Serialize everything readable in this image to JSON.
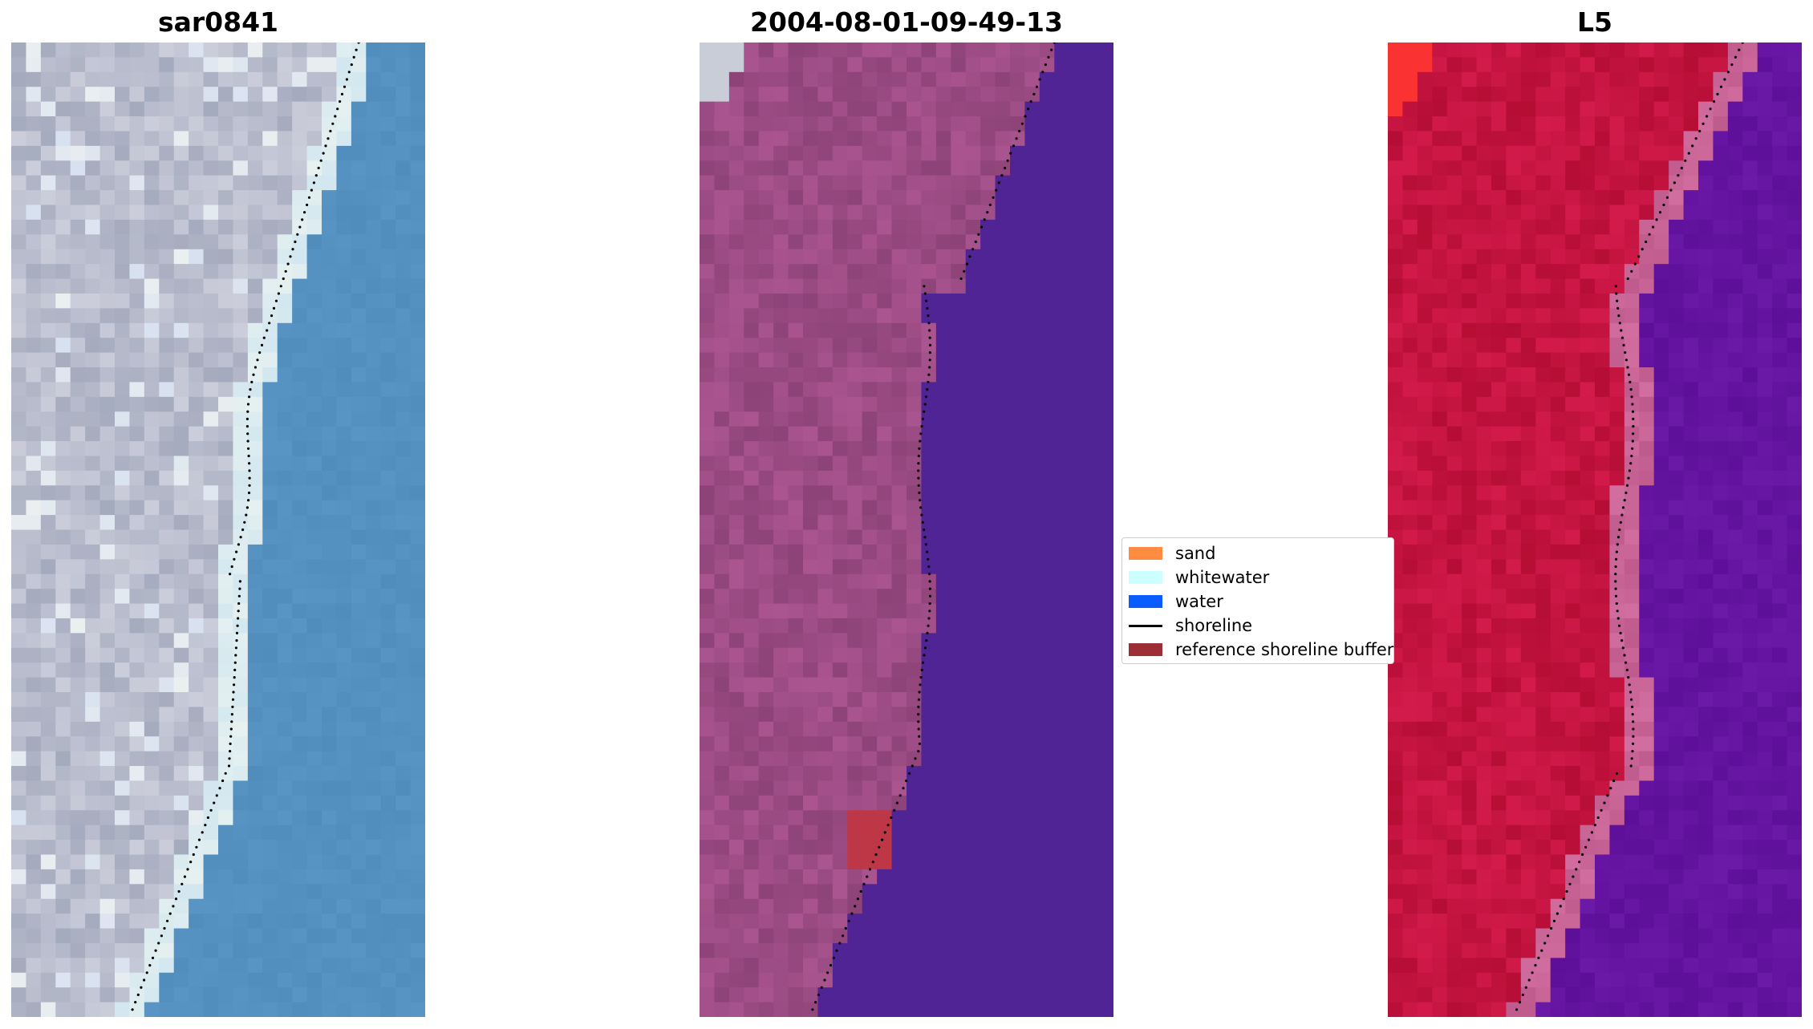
{
  "panels": [
    {
      "title": "sar0841",
      "kind": "rgb"
    },
    {
      "title": "2004-08-01-09-49-13",
      "kind": "classified"
    },
    {
      "title": "L5",
      "kind": "index"
    }
  ],
  "legend": {
    "items": [
      {
        "label": "sand",
        "type": "patch",
        "color": "#ff8c40"
      },
      {
        "label": "whitewater",
        "type": "patch",
        "color": "#ccffff"
      },
      {
        "label": "water",
        "type": "patch",
        "color": "#0a5cff"
      },
      {
        "label": "shoreline",
        "type": "line",
        "color": "#000000"
      },
      {
        "label": "reference shoreline buffer",
        "type": "patch",
        "color": "#9e2e35"
      }
    ]
  },
  "colors": {
    "rgb_water": "#5490c0",
    "rgb_land": "#b8bccc",
    "classified_water": "#502494",
    "classified_land": "#9c4c84",
    "index_land": "#c41440",
    "index_water": "#6414a0"
  }
}
